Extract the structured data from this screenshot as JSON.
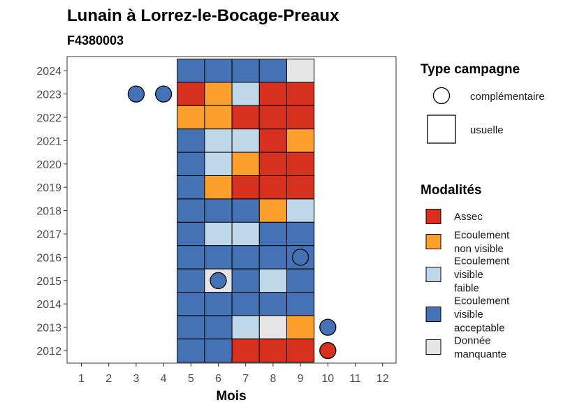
{
  "chart_data": {
    "type": "heatmap",
    "title": "Lunain à Lorrez-le-Bocage-Preaux",
    "subtitle": "F4380003",
    "xlabel": "Mois",
    "ylabel": "",
    "x_ticks": [
      "1",
      "2",
      "3",
      "4",
      "5",
      "6",
      "7",
      "8",
      "9",
      "10",
      "11",
      "12"
    ],
    "y_ticks": [
      "2012",
      "2013",
      "2014",
      "2015",
      "2016",
      "2017",
      "2018",
      "2019",
      "2020",
      "2021",
      "2022",
      "2023",
      "2024"
    ],
    "grid": false,
    "legend_placement": "right",
    "colors": {
      "assec": "#d7301f",
      "ecoulement_non_visible": "#fc9f2d",
      "ecoulement_faible": "#bed8e9",
      "ecoulement_acceptable": "#4572b5",
      "donnee_manquante": "#e5e5e5"
    },
    "legend_campagne": {
      "title": "Type campagne",
      "items": [
        {
          "label": "complémentaire",
          "shape": "circle"
        },
        {
          "label": "usuelle",
          "shape": "square"
        }
      ]
    },
    "legend_modalites": {
      "title": "Modalités",
      "items": [
        {
          "key": "assec",
          "lines": [
            "Assec"
          ]
        },
        {
          "key": "ecoulement_non_visible",
          "lines": [
            "Ecoulement",
            "non visible"
          ]
        },
        {
          "key": "ecoulement_faible",
          "lines": [
            "Ecoulement",
            "visible",
            "faible"
          ]
        },
        {
          "key": "ecoulement_acceptable",
          "lines": [
            "Ecoulement",
            "visible",
            "acceptable"
          ]
        },
        {
          "key": "donnee_manquante",
          "lines": [
            "Donnée",
            "manquante"
          ]
        }
      ]
    },
    "usuelle": [
      {
        "year": 2024,
        "months": {
          "5": "ecoulement_acceptable",
          "6": "ecoulement_acceptable",
          "7": "ecoulement_acceptable",
          "8": "ecoulement_acceptable",
          "9": "donnee_manquante"
        }
      },
      {
        "year": 2023,
        "months": {
          "5": "assec",
          "6": "ecoulement_non_visible",
          "7": "ecoulement_faible",
          "8": "assec",
          "9": "assec"
        }
      },
      {
        "year": 2022,
        "months": {
          "5": "ecoulement_non_visible",
          "6": "ecoulement_non_visible",
          "7": "assec",
          "8": "assec",
          "9": "assec"
        }
      },
      {
        "year": 2021,
        "months": {
          "5": "ecoulement_acceptable",
          "6": "ecoulement_faible",
          "7": "ecoulement_faible",
          "8": "assec",
          "9": "ecoulement_non_visible"
        }
      },
      {
        "year": 2020,
        "months": {
          "5": "ecoulement_acceptable",
          "6": "ecoulement_faible",
          "7": "ecoulement_non_visible",
          "8": "assec",
          "9": "assec"
        }
      },
      {
        "year": 2019,
        "months": {
          "5": "ecoulement_acceptable",
          "6": "ecoulement_non_visible",
          "7": "assec",
          "8": "assec",
          "9": "assec"
        }
      },
      {
        "year": 2018,
        "months": {
          "5": "ecoulement_acceptable",
          "6": "ecoulement_acceptable",
          "7": "ecoulement_acceptable",
          "8": "ecoulement_non_visible",
          "9": "ecoulement_faible"
        }
      },
      {
        "year": 2017,
        "months": {
          "5": "ecoulement_acceptable",
          "6": "ecoulement_faible",
          "7": "ecoulement_faible",
          "8": "ecoulement_acceptable",
          "9": "ecoulement_acceptable"
        }
      },
      {
        "year": 2016,
        "months": {
          "5": "ecoulement_acceptable",
          "6": "ecoulement_acceptable",
          "7": "ecoulement_acceptable",
          "8": "ecoulement_acceptable",
          "9": "ecoulement_acceptable"
        }
      },
      {
        "year": 2015,
        "months": {
          "5": "ecoulement_acceptable",
          "6": "donnee_manquante",
          "7": "ecoulement_acceptable",
          "8": "ecoulement_faible",
          "9": "ecoulement_acceptable"
        }
      },
      {
        "year": 2014,
        "months": {
          "5": "ecoulement_acceptable",
          "6": "ecoulement_acceptable",
          "7": "ecoulement_acceptable",
          "8": "ecoulement_acceptable",
          "9": "ecoulement_acceptable"
        }
      },
      {
        "year": 2013,
        "months": {
          "5": "ecoulement_acceptable",
          "6": "ecoulement_acceptable",
          "7": "ecoulement_faible",
          "8": "donnee_manquante",
          "9": "ecoulement_non_visible"
        }
      },
      {
        "year": 2012,
        "months": {
          "5": "ecoulement_acceptable",
          "6": "ecoulement_acceptable",
          "7": "assec",
          "8": "assec",
          "9": "assec"
        }
      }
    ],
    "complementaire": [
      {
        "year": 2023,
        "month": 3,
        "value": "ecoulement_acceptable"
      },
      {
        "year": 2023,
        "month": 4,
        "value": "ecoulement_acceptable"
      },
      {
        "year": 2016,
        "month": 9,
        "value": "ecoulement_acceptable"
      },
      {
        "year": 2015,
        "month": 6,
        "value": "ecoulement_acceptable"
      },
      {
        "year": 2013,
        "month": 10,
        "value": "ecoulement_acceptable"
      },
      {
        "year": 2012,
        "month": 10,
        "value": "assec"
      }
    ]
  }
}
